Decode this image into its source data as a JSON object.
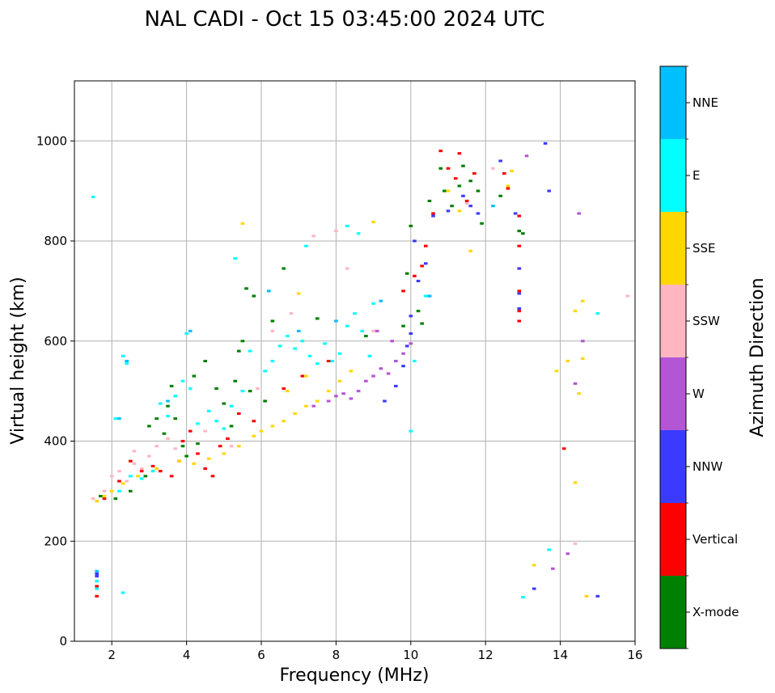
{
  "chart_data": {
    "type": "scatter",
    "title": "NAL CADI - Oct 15 03:45:00 2024 UTC",
    "xlabel": "Frequency (MHz)",
    "ylabel": "Virtual height (km)",
    "xlim": [
      1,
      16
    ],
    "ylim": [
      0,
      1120
    ],
    "xticks": [
      2,
      4,
      6,
      8,
      10,
      12,
      14,
      16
    ],
    "yticks": [
      0,
      200,
      400,
      600,
      800,
      1000
    ],
    "grid": true,
    "colorbar": {
      "title": "Azimuth Direction",
      "categories": [
        {
          "name": "X-mode",
          "color": "#008000"
        },
        {
          "name": "Vertical",
          "color": "#ff0000"
        },
        {
          "name": "NNW",
          "color": "#3b3bff"
        },
        {
          "name": "W",
          "color": "#b455d5"
        },
        {
          "name": "SSW",
          "color": "#ffb6c1"
        },
        {
          "name": "SSE",
          "color": "#ffd700"
        },
        {
          "name": "E",
          "color": "#00ffff"
        },
        {
          "name": "NNE",
          "color": "#00bfff"
        }
      ]
    },
    "cell_width_mhz": 0.1,
    "cell_height_km": 5,
    "series": [
      {
        "name": "X-mode",
        "points": [
          [
            1.7,
            290
          ],
          [
            2.1,
            285
          ],
          [
            2.5,
            300
          ],
          [
            2.9,
            330
          ],
          [
            3.0,
            430
          ],
          [
            3.2,
            445
          ],
          [
            3.4,
            415
          ],
          [
            3.5,
            470
          ],
          [
            3.6,
            510
          ],
          [
            3.7,
            445
          ],
          [
            3.9,
            390
          ],
          [
            4.0,
            370
          ],
          [
            4.2,
            530
          ],
          [
            4.3,
            395
          ],
          [
            4.5,
            560
          ],
          [
            4.8,
            505
          ],
          [
            5.0,
            475
          ],
          [
            5.2,
            430
          ],
          [
            5.3,
            520
          ],
          [
            5.4,
            580
          ],
          [
            5.5,
            600
          ],
          [
            5.6,
            705
          ],
          [
            5.7,
            500
          ],
          [
            5.8,
            690
          ],
          [
            6.1,
            480
          ],
          [
            6.3,
            640
          ],
          [
            6.6,
            745
          ],
          [
            7.5,
            645
          ],
          [
            8.8,
            610
          ],
          [
            9.8,
            630
          ],
          [
            9.9,
            735
          ],
          [
            10.0,
            830
          ],
          [
            10.2,
            660
          ],
          [
            10.3,
            635
          ],
          [
            10.5,
            880
          ],
          [
            10.8,
            945
          ],
          [
            10.9,
            900
          ],
          [
            11.1,
            870
          ],
          [
            11.3,
            910
          ],
          [
            11.4,
            950
          ],
          [
            11.6,
            920
          ],
          [
            11.8,
            900
          ],
          [
            11.9,
            835
          ],
          [
            12.4,
            890
          ],
          [
            12.9,
            820
          ],
          [
            13.0,
            815
          ]
        ]
      },
      {
        "name": "Vertical",
        "points": [
          [
            1.6,
            110
          ],
          [
            1.6,
            90
          ],
          [
            1.8,
            285
          ],
          [
            2.2,
            320
          ],
          [
            2.5,
            360
          ],
          [
            2.8,
            340
          ],
          [
            3.1,
            350
          ],
          [
            3.3,
            340
          ],
          [
            3.6,
            330
          ],
          [
            3.8,
            360
          ],
          [
            3.9,
            400
          ],
          [
            4.1,
            420
          ],
          [
            4.3,
            375
          ],
          [
            4.5,
            345
          ],
          [
            4.7,
            330
          ],
          [
            4.9,
            390
          ],
          [
            5.1,
            405
          ],
          [
            5.4,
            455
          ],
          [
            5.8,
            440
          ],
          [
            6.6,
            505
          ],
          [
            7.1,
            530
          ],
          [
            7.8,
            560
          ],
          [
            9.8,
            700
          ],
          [
            10.1,
            730
          ],
          [
            10.3,
            750
          ],
          [
            10.4,
            790
          ],
          [
            10.6,
            855
          ],
          [
            10.8,
            980
          ],
          [
            11.0,
            945
          ],
          [
            11.2,
            925
          ],
          [
            11.3,
            975
          ],
          [
            11.5,
            880
          ],
          [
            11.7,
            935
          ],
          [
            12.5,
            935
          ],
          [
            12.6,
            905
          ],
          [
            12.9,
            850
          ],
          [
            12.9,
            790
          ],
          [
            12.9,
            745
          ],
          [
            12.9,
            700
          ],
          [
            12.9,
            660
          ],
          [
            12.9,
            640
          ],
          [
            14.1,
            385
          ]
        ]
      },
      {
        "name": "NNW",
        "points": [
          [
            1.6,
            135
          ],
          [
            1.6,
            130
          ],
          [
            9.3,
            480
          ],
          [
            9.6,
            510
          ],
          [
            9.8,
            550
          ],
          [
            9.9,
            590
          ],
          [
            10.0,
            615
          ],
          [
            10.0,
            650
          ],
          [
            10.1,
            800
          ],
          [
            10.2,
            720
          ],
          [
            10.4,
            755
          ],
          [
            10.5,
            690
          ],
          [
            10.6,
            850
          ],
          [
            11.0,
            860
          ],
          [
            11.4,
            890
          ],
          [
            11.6,
            870
          ],
          [
            11.8,
            855
          ],
          [
            12.4,
            960
          ],
          [
            12.8,
            855
          ],
          [
            12.9,
            745
          ],
          [
            12.9,
            695
          ],
          [
            12.9,
            665
          ],
          [
            13.3,
            105
          ],
          [
            13.6,
            995
          ],
          [
            13.7,
            900
          ],
          [
            15.0,
            90
          ]
        ]
      },
      {
        "name": "W",
        "points": [
          [
            7.4,
            470
          ],
          [
            7.8,
            480
          ],
          [
            8.0,
            490
          ],
          [
            8.2,
            495
          ],
          [
            8.4,
            485
          ],
          [
            8.6,
            500
          ],
          [
            8.8,
            520
          ],
          [
            9.0,
            530
          ],
          [
            9.2,
            545
          ],
          [
            9.4,
            535
          ],
          [
            9.6,
            560
          ],
          [
            9.8,
            575
          ],
          [
            10.0,
            595
          ],
          [
            9.1,
            620
          ],
          [
            9.5,
            600
          ],
          [
            13.1,
            970
          ],
          [
            13.8,
            145
          ],
          [
            14.2,
            175
          ],
          [
            14.4,
            515
          ],
          [
            14.6,
            600
          ],
          [
            14.5,
            855
          ]
        ]
      },
      {
        "name": "SSW",
        "points": [
          [
            1.5,
            285
          ],
          [
            1.8,
            300
          ],
          [
            2.0,
            330
          ],
          [
            2.2,
            340
          ],
          [
            2.4,
            320
          ],
          [
            2.6,
            355
          ],
          [
            2.8,
            345
          ],
          [
            2.6,
            380
          ],
          [
            3.0,
            370
          ],
          [
            3.2,
            390
          ],
          [
            3.5,
            405
          ],
          [
            3.7,
            385
          ],
          [
            4.5,
            420
          ],
          [
            5.2,
            390
          ],
          [
            5.9,
            505
          ],
          [
            6.3,
            620
          ],
          [
            6.8,
            655
          ],
          [
            7.4,
            810
          ],
          [
            8.0,
            820
          ],
          [
            8.3,
            745
          ],
          [
            9.0,
            620
          ],
          [
            11.5,
            875
          ],
          [
            12.2,
            945
          ],
          [
            14.4,
            195
          ],
          [
            15.8,
            690
          ]
        ]
      },
      {
        "name": "SSE",
        "points": [
          [
            1.6,
            280
          ],
          [
            1.8,
            290
          ],
          [
            2.0,
            300
          ],
          [
            2.3,
            315
          ],
          [
            2.7,
            330
          ],
          [
            3.2,
            345
          ],
          [
            3.8,
            360
          ],
          [
            4.2,
            355
          ],
          [
            4.6,
            365
          ],
          [
            5.0,
            375
          ],
          [
            5.4,
            390
          ],
          [
            5.8,
            410
          ],
          [
            6.0,
            420
          ],
          [
            6.3,
            430
          ],
          [
            6.6,
            440
          ],
          [
            6.9,
            455
          ],
          [
            7.2,
            470
          ],
          [
            7.5,
            480
          ],
          [
            7.8,
            500
          ],
          [
            8.1,
            520
          ],
          [
            8.4,
            540
          ],
          [
            6.7,
            500
          ],
          [
            7.2,
            530
          ],
          [
            5.5,
            835
          ],
          [
            7.0,
            695
          ],
          [
            9.0,
            838
          ],
          [
            11.0,
            900
          ],
          [
            11.3,
            860
          ],
          [
            11.6,
            780
          ],
          [
            12.6,
            910
          ],
          [
            12.7,
            940
          ],
          [
            13.3,
            152
          ],
          [
            13.9,
            540
          ],
          [
            14.2,
            560
          ],
          [
            14.4,
            660
          ],
          [
            14.5,
            495
          ],
          [
            14.4,
            317
          ],
          [
            14.6,
            565
          ],
          [
            14.7,
            90
          ],
          [
            14.6,
            680
          ]
        ]
      },
      {
        "name": "E",
        "points": [
          [
            1.6,
            120
          ],
          [
            1.6,
            105
          ],
          [
            1.5,
            888
          ],
          [
            2.1,
            445
          ],
          [
            2.3,
            570
          ],
          [
            2.4,
            555
          ],
          [
            2.3,
            97
          ],
          [
            2.2,
            300
          ],
          [
            2.5,
            330
          ],
          [
            2.8,
            325
          ],
          [
            3.1,
            340
          ],
          [
            3.3,
            475
          ],
          [
            3.5,
            450
          ],
          [
            3.7,
            490
          ],
          [
            3.9,
            520
          ],
          [
            4.1,
            505
          ],
          [
            4.3,
            435
          ],
          [
            4.0,
            615
          ],
          [
            4.6,
            460
          ],
          [
            4.8,
            440
          ],
          [
            5.0,
            425
          ],
          [
            5.2,
            470
          ],
          [
            5.3,
            765
          ],
          [
            5.5,
            500
          ],
          [
            5.7,
            580
          ],
          [
            6.1,
            540
          ],
          [
            6.3,
            560
          ],
          [
            6.5,
            590
          ],
          [
            6.7,
            610
          ],
          [
            6.9,
            585
          ],
          [
            7.1,
            600
          ],
          [
            7.3,
            570
          ],
          [
            7.5,
            555
          ],
          [
            7.7,
            595
          ],
          [
            7.9,
            560
          ],
          [
            8.1,
            575
          ],
          [
            8.3,
            630
          ],
          [
            8.5,
            655
          ],
          [
            8.7,
            620
          ],
          [
            8.9,
            570
          ],
          [
            7.2,
            790
          ],
          [
            8.3,
            830
          ],
          [
            8.6,
            815
          ],
          [
            9.0,
            675
          ],
          [
            10.0,
            420
          ],
          [
            10.1,
            560
          ],
          [
            10.4,
            690
          ],
          [
            13.0,
            88
          ],
          [
            13.7,
            183
          ],
          [
            15.0,
            655
          ]
        ]
      },
      {
        "name": "NNE",
        "points": [
          [
            1.6,
            140
          ],
          [
            2.2,
            445
          ],
          [
            2.4,
            560
          ],
          [
            3.5,
            480
          ],
          [
            4.1,
            620
          ],
          [
            6.2,
            700
          ],
          [
            7.0,
            620
          ],
          [
            8.0,
            640
          ],
          [
            9.2,
            680
          ],
          [
            10.5,
            690
          ],
          [
            12.2,
            870
          ]
        ]
      }
    ]
  }
}
